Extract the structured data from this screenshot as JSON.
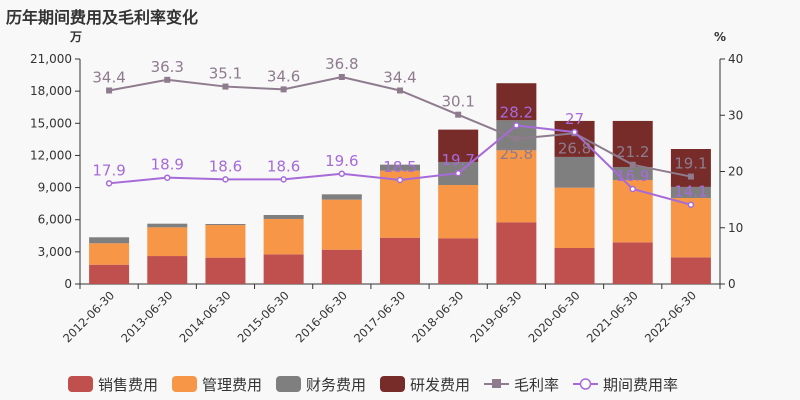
{
  "chart_data": {
    "type": "bar",
    "title": "历年期间费用及毛利率变化",
    "y_left_unit": "万",
    "y_right_unit": "%",
    "y_left_range": [
      0,
      21000
    ],
    "y_left_ticks": [
      "0",
      "3,000",
      "6,000",
      "9,000",
      "12,000",
      "15,000",
      "18,000",
      "21,000"
    ],
    "y_right_range": [
      0,
      40
    ],
    "y_right_ticks": [
      "0",
      "10",
      "20",
      "30",
      "40"
    ],
    "categories": [
      "2012-06-30",
      "2013-06-30",
      "2014-06-30",
      "2015-06-30",
      "2016-06-30",
      "2017-06-30",
      "2018-06-30",
      "2019-06-30",
      "2020-06-30",
      "2021-06-30",
      "2022-06-30"
    ],
    "bar_series": [
      {
        "name": "销售费用",
        "color": "#c0504d",
        "values": [
          1800,
          2610,
          2460,
          2770,
          3200,
          4320,
          4270,
          5760,
          3360,
          3890,
          2490
        ]
      },
      {
        "name": "管理费用",
        "color": "#f79646",
        "values": [
          2000,
          2680,
          3040,
          3300,
          4670,
          6260,
          4970,
          6720,
          5630,
          5820,
          5540
        ]
      },
      {
        "name": "财务费用",
        "color": "#7f7f7f",
        "values": [
          560,
          340,
          100,
          370,
          500,
          560,
          2150,
          2800,
          2870,
          1210,
          1030
        ]
      },
      {
        "name": "研发费用",
        "color": "#772c2a",
        "values": [
          0,
          0,
          0,
          0,
          0,
          0,
          3020,
          3460,
          3360,
          4300,
          3540
        ]
      }
    ],
    "line_series": [
      {
        "name": "毛利率",
        "color": "#8e7c8e",
        "values": [
          34.4,
          36.3,
          35.1,
          34.6,
          36.8,
          34.4,
          30.1,
          25.8,
          26.8,
          21.2,
          19.1
        ],
        "labels": [
          "34.4",
          "36.3",
          "35.1",
          "34.6",
          "36.8",
          "34.4",
          "30.1",
          "25.8",
          "26.8",
          "21.2",
          "19.1"
        ]
      },
      {
        "name": "期间费用率",
        "color": "#a66bd9",
        "values": [
          17.9,
          18.9,
          18.6,
          18.6,
          19.6,
          18.5,
          19.7,
          28.2,
          27,
          16.9,
          14.1
        ],
        "labels": [
          "17.9",
          "18.9",
          "18.6",
          "18.6",
          "19.6",
          "18.5",
          "19.7",
          "28.2",
          "27",
          "16.9",
          "14.1"
        ]
      }
    ]
  }
}
